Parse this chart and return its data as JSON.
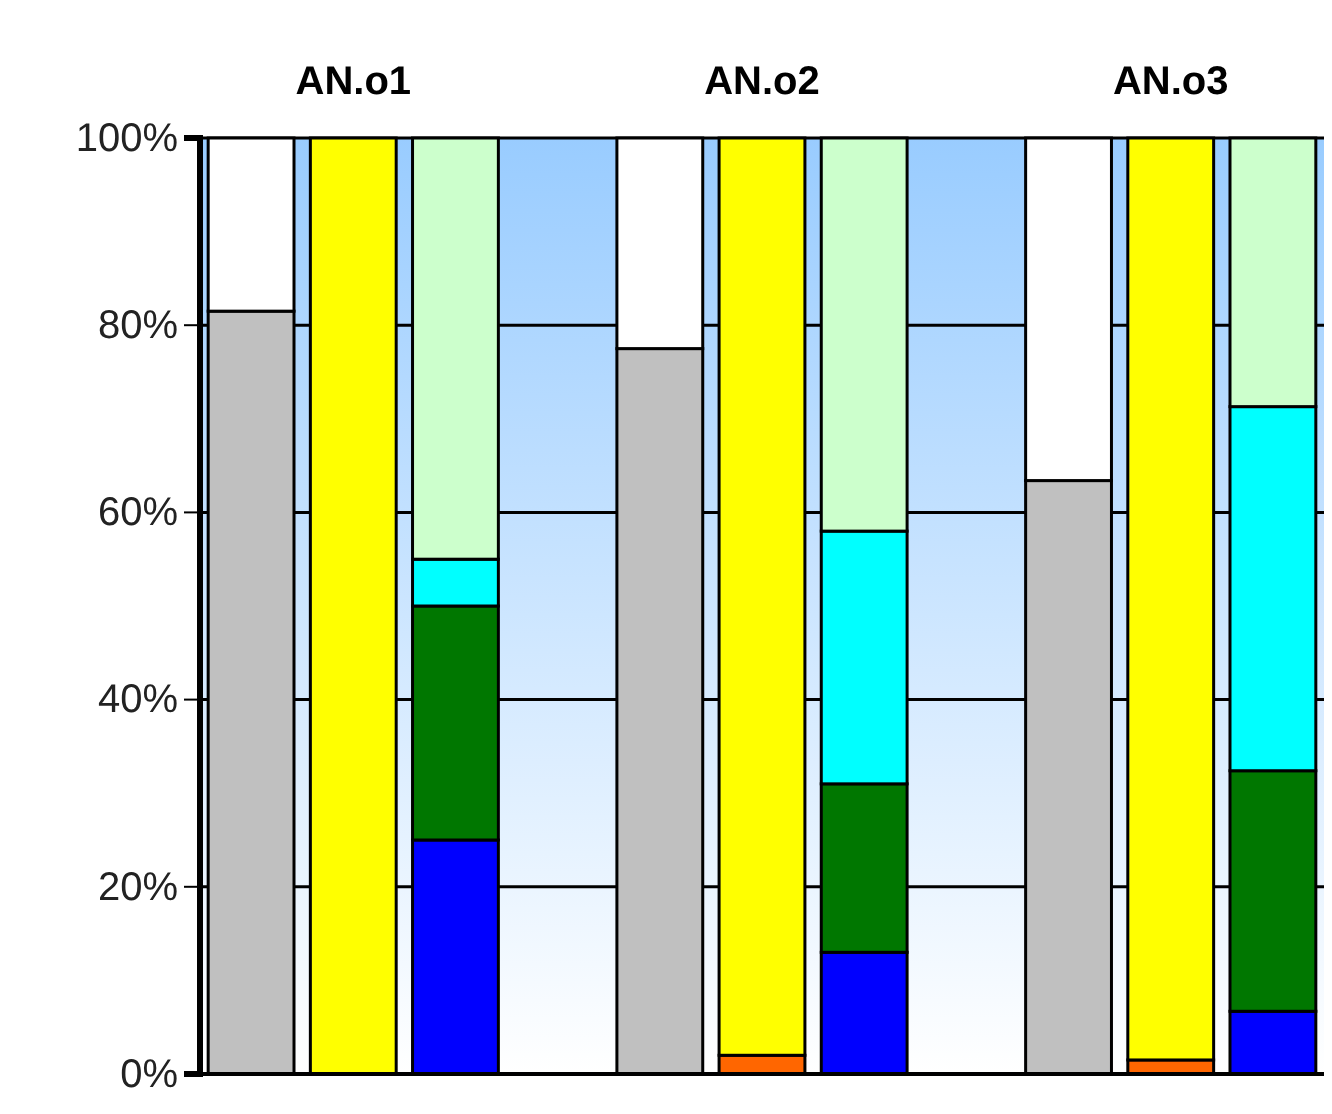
{
  "chart_data": {
    "type": "bar",
    "stacked": true,
    "categories": [
      null,
      "AN.o1",
      null,
      null,
      null,
      "AN.o2",
      null,
      null,
      null,
      "AN.o3",
      null
    ],
    "series": [
      {
        "color": "#c0c0c0",
        "values": [
          81.5,
          null,
          null,
          null,
          77.5,
          null,
          null,
          null,
          63.4,
          null,
          null
        ]
      },
      {
        "color": "#ffffff",
        "values": [
          18.5,
          null,
          null,
          null,
          22.5,
          null,
          null,
          null,
          36.6,
          null,
          null
        ]
      },
      {
        "color": "#ff6600",
        "values": [
          null,
          null,
          null,
          null,
          null,
          2,
          null,
          null,
          null,
          1.5,
          null
        ]
      },
      {
        "color": "#ffff00",
        "values": [
          null,
          100,
          null,
          null,
          null,
          98,
          null,
          null,
          null,
          98.5,
          null
        ]
      },
      {
        "color": "#0000ff",
        "values": [
          null,
          null,
          25,
          null,
          null,
          null,
          13,
          null,
          null,
          null,
          6.7
        ]
      },
      {
        "color": "#007700",
        "values": [
          null,
          null,
          25,
          null,
          null,
          null,
          18,
          null,
          null,
          null,
          25.7
        ]
      },
      {
        "color": "#00ffff",
        "values": [
          null,
          null,
          5,
          null,
          null,
          null,
          27,
          null,
          null,
          null,
          38.9
        ]
      },
      {
        "color": "#ccffcc",
        "values": [
          null,
          null,
          45,
          null,
          null,
          null,
          42,
          null,
          null,
          null,
          28.7
        ]
      }
    ],
    "ylim": [
      0,
      100
    ],
    "yticks": [
      {
        "value": 0,
        "label": "0%"
      },
      {
        "value": 20,
        "label": "20%"
      },
      {
        "value": 40,
        "label": "40%"
      },
      {
        "value": 60,
        "label": "60%"
      },
      {
        "value": 80,
        "label": "80%"
      },
      {
        "value": 100,
        "label": "100%"
      }
    ],
    "grid": "y"
  }
}
